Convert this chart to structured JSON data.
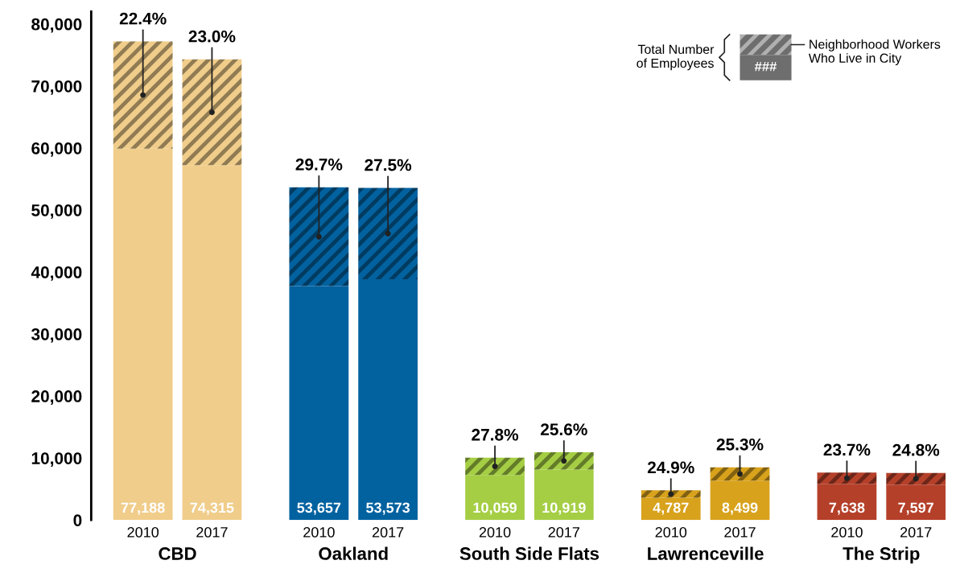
{
  "chart_data": {
    "type": "bar",
    "stacked": true,
    "categories": [
      "2010",
      "2017",
      "2010",
      "2017",
      "2010",
      "2017",
      "2010",
      "2017",
      "2010",
      "2017"
    ],
    "series": [
      {
        "colors": [
          "#f0cd8a",
          "#f0cd8a",
          "#0262a0",
          "#0262a0",
          "#a5ce45",
          "#a5ce45",
          "#d8a21c",
          "#d8a21c",
          "#b5402a",
          "#b5402a"
        ],
        "values": [
          59898,
          57223,
          37721,
          38840,
          7263,
          8124,
          3595,
          6349,
          5828,
          5713
        ]
      },
      {
        "colors": [
          "#f0cd8a",
          "#f0cd8a",
          "#0262a0",
          "#0262a0",
          "#a5ce45",
          "#a5ce45",
          "#d8a21c",
          "#d8a21c",
          "#b5402a",
          "#b5402a"
        ],
        "values": [
          17290,
          17092,
          15936,
          14733,
          2796,
          2795,
          1192,
          2150,
          1810,
          1884
        ]
      }
    ],
    "totals": [
      "77,188",
      "74,315",
      "53,657",
      "53,573",
      "10,059",
      "10,919",
      "4,787",
      "8,499",
      "7,638",
      "7,597"
    ],
    "annotations": [
      "CBD",
      "Oakland",
      "South Side Flats",
      "Lawrenceville",
      "The Strip",
      "22.4%",
      "23.0%",
      "29.7%",
      "27.5%",
      "27.8%",
      "25.6%",
      "24.9%",
      "25.3%",
      "23.7%",
      "24.8%",
      "Total Number\nof Employees",
      "Neighborhood Workers\nWho Live in City",
      "###"
    ],
    "ylim": [
      0,
      82000
    ],
    "yticks": [
      0,
      {
        "value": 10000,
        "label": "10,000"
      },
      {
        "value": 20000,
        "label": "20,000"
      },
      {
        "value": 30000,
        "label": "30,000"
      },
      {
        "value": 40000,
        "label": "40,000"
      },
      {
        "value": 50000,
        "label": "50,000"
      },
      {
        "value": 60000,
        "label": "60,000"
      },
      {
        "value": 70000,
        "label": "70,000"
      },
      {
        "value": 80000,
        "label": "80,000"
      }
    ],
    "grid": false
  }
}
